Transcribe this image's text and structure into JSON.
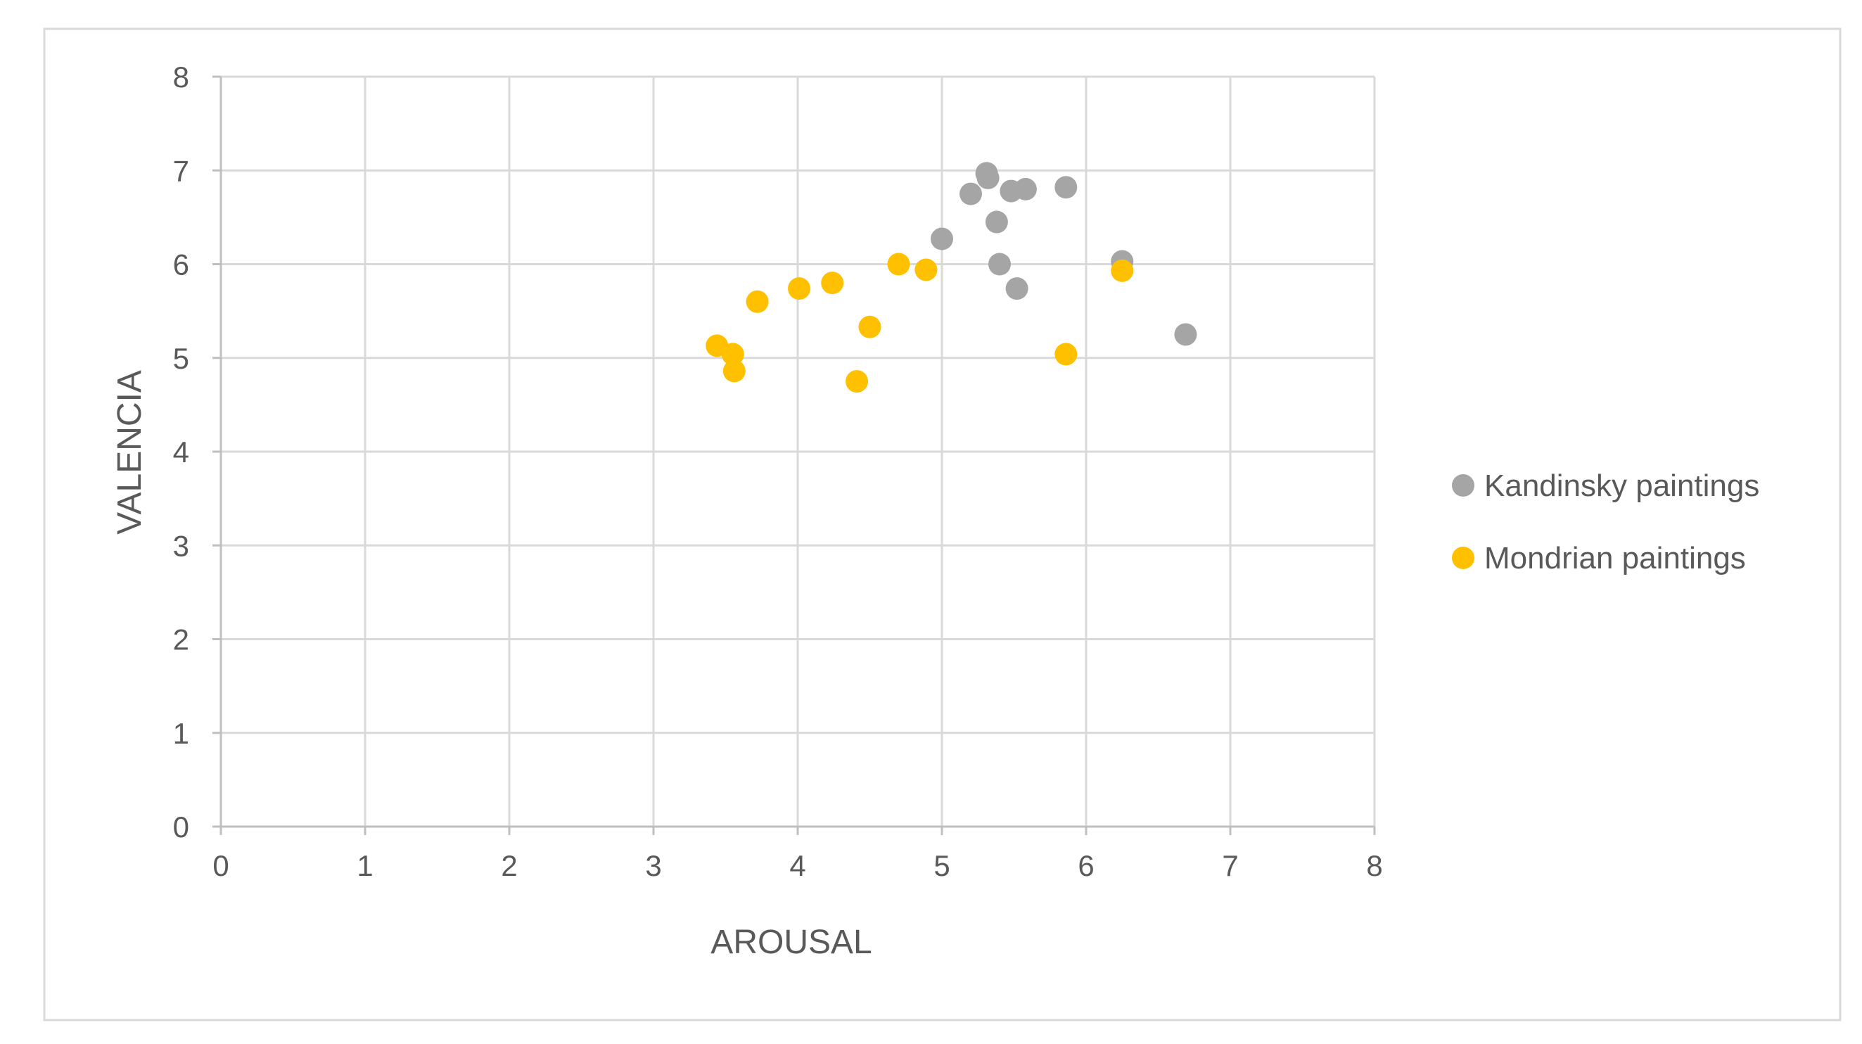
{
  "chart_data": {
    "type": "scatter",
    "xlabel": "AROUSAL",
    "ylabel": "VALENCIA",
    "xlim": [
      0,
      8
    ],
    "ylim": [
      0,
      8
    ],
    "xticks": [
      0,
      1,
      2,
      3,
      4,
      5,
      6,
      7,
      8
    ],
    "yticks": [
      0,
      1,
      2,
      3,
      4,
      5,
      6,
      7,
      8
    ],
    "grid": true,
    "legend_position": "right",
    "series": [
      {
        "name": "Kandinsky paintings",
        "color": "#a5a5a5",
        "points": [
          {
            "x": 5.0,
            "y": 6.27
          },
          {
            "x": 5.2,
            "y": 6.75
          },
          {
            "x": 5.31,
            "y": 6.97
          },
          {
            "x": 5.32,
            "y": 6.92
          },
          {
            "x": 5.38,
            "y": 6.45
          },
          {
            "x": 5.4,
            "y": 6.0
          },
          {
            "x": 5.48,
            "y": 6.78
          },
          {
            "x": 5.52,
            "y": 5.74
          },
          {
            "x": 5.58,
            "y": 6.8
          },
          {
            "x": 5.86,
            "y": 6.82
          },
          {
            "x": 6.25,
            "y": 6.03
          },
          {
            "x": 6.69,
            "y": 5.25
          }
        ]
      },
      {
        "name": "Mondrian paintings",
        "color": "#ffc000",
        "points": [
          {
            "x": 3.44,
            "y": 5.13
          },
          {
            "x": 3.55,
            "y": 5.04
          },
          {
            "x": 3.56,
            "y": 4.86
          },
          {
            "x": 3.72,
            "y": 5.6
          },
          {
            "x": 4.01,
            "y": 5.74
          },
          {
            "x": 4.24,
            "y": 5.8
          },
          {
            "x": 4.41,
            "y": 4.75
          },
          {
            "x": 4.5,
            "y": 5.33
          },
          {
            "x": 4.7,
            "y": 6.0
          },
          {
            "x": 4.89,
            "y": 5.94
          },
          {
            "x": 5.86,
            "y": 5.04
          },
          {
            "x": 6.25,
            "y": 5.93
          }
        ]
      }
    ]
  }
}
